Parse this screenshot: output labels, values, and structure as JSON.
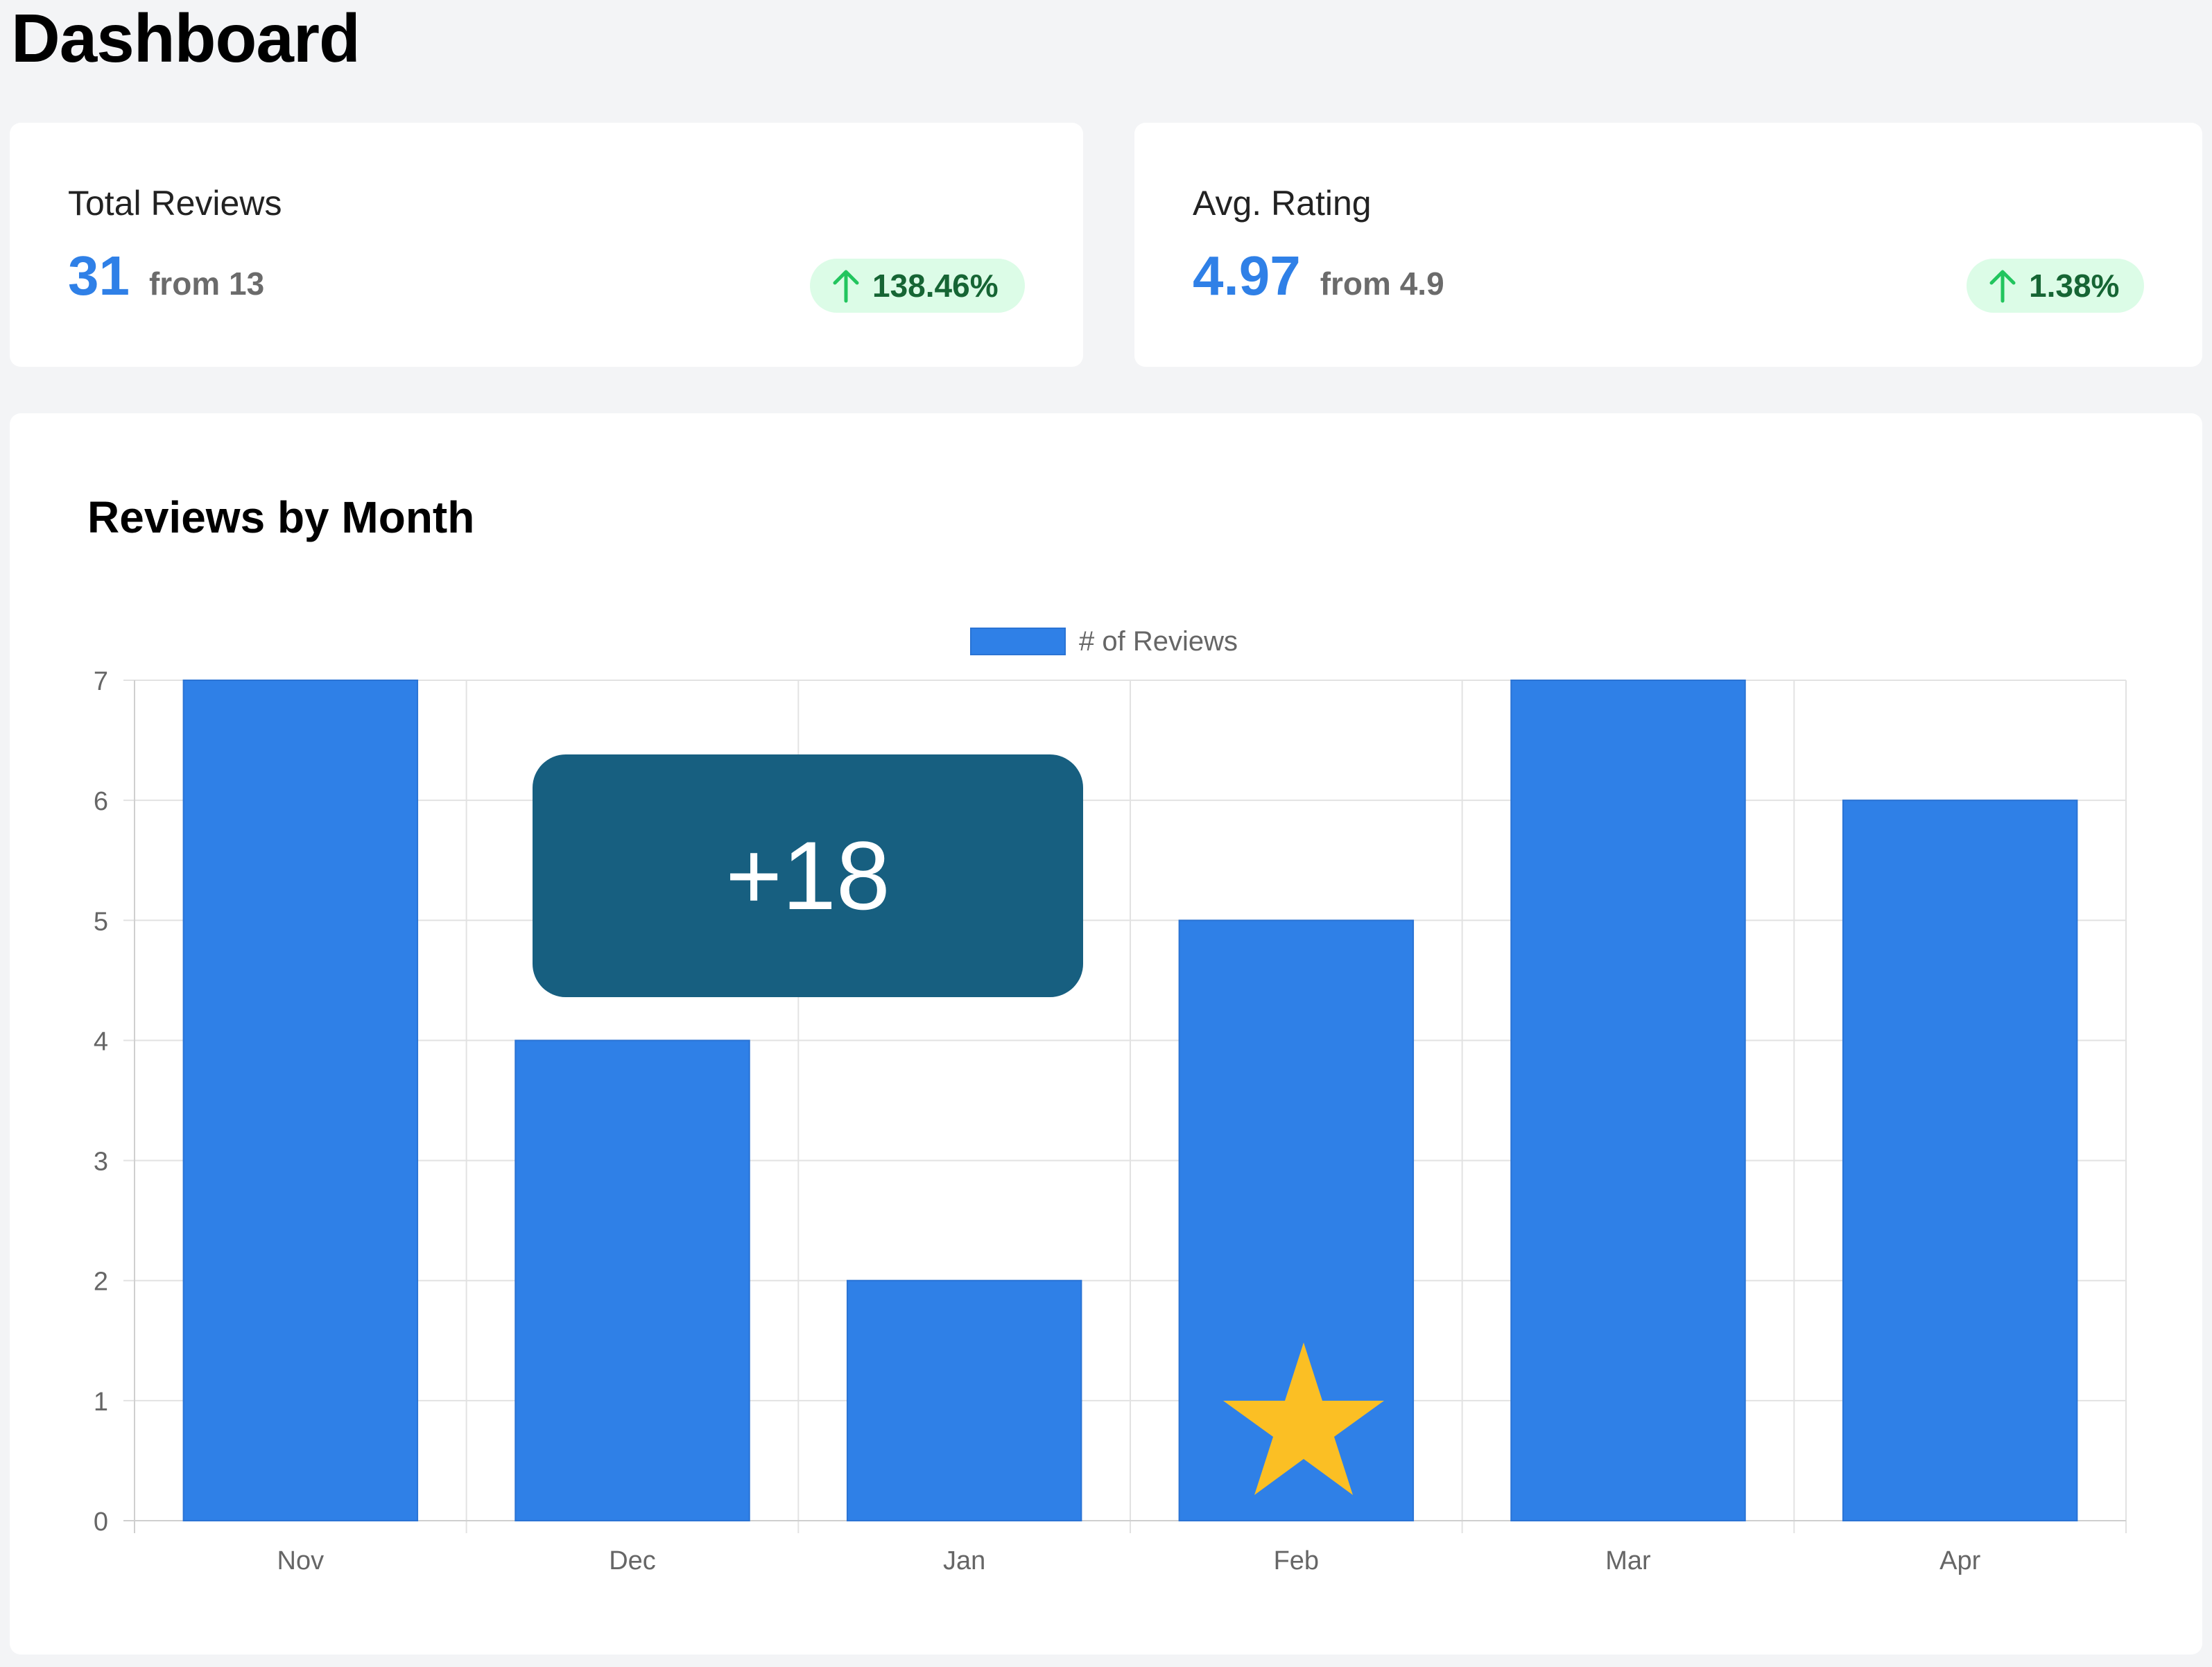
{
  "header": {
    "title": "Dashboard"
  },
  "stats": {
    "total_reviews": {
      "label": "Total Reviews",
      "value": "31",
      "from": "from 13",
      "change": "138.46%",
      "trend_icon": "arrow-up-icon"
    },
    "avg_rating": {
      "label": "Avg. Rating",
      "value": "4.97",
      "from": "from 4.9",
      "change": "1.38%",
      "trend_icon": "arrow-up-icon"
    }
  },
  "chart_card": {
    "title": "Reviews by Month"
  },
  "overlay": {
    "label": "+18",
    "star_icon": "star-icon"
  },
  "colors": {
    "bar": "#2f80e7",
    "accent_value": "#2f80e7",
    "badge_bg": "#dcfce7",
    "badge_text": "#166534",
    "overlay_bg": "#175f80",
    "star": "#fbbf24"
  },
  "chart_data": {
    "type": "bar",
    "categories": [
      "Nov",
      "Dec",
      "Jan",
      "Feb",
      "Mar",
      "Apr"
    ],
    "series": [
      {
        "name": "# of Reviews",
        "values": [
          7,
          4,
          2,
          5,
          7,
          6
        ]
      }
    ],
    "ylim": [
      0,
      7
    ],
    "yticks": [
      0,
      1,
      2,
      3,
      4,
      5,
      6,
      7
    ],
    "grid": true,
    "legend": "top-center"
  }
}
